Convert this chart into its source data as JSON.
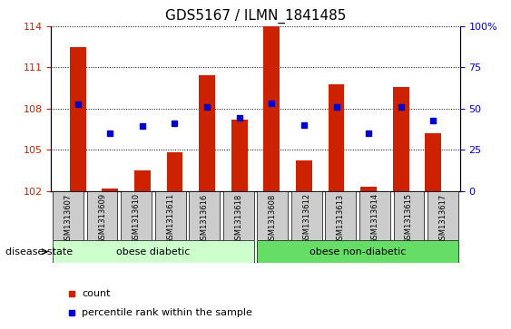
{
  "title": "GDS5167 / ILMN_1841485",
  "samples": [
    "GSM1313607",
    "GSM1313609",
    "GSM1313610",
    "GSM1313611",
    "GSM1313616",
    "GSM1313618",
    "GSM1313608",
    "GSM1313612",
    "GSM1313613",
    "GSM1313614",
    "GSM1313615",
    "GSM1313617"
  ],
  "bar_values": [
    112.5,
    102.2,
    103.5,
    104.8,
    110.4,
    107.2,
    114.0,
    104.2,
    109.8,
    102.3,
    109.6,
    106.2
  ],
  "dot_values": [
    108.3,
    106.2,
    106.7,
    106.9,
    108.1,
    107.3,
    108.4,
    106.8,
    108.1,
    106.2,
    108.1,
    107.1
  ],
  "bar_color": "#cc2200",
  "dot_color": "#0000cc",
  "ylim_left": [
    102,
    114
  ],
  "yticks_left": [
    102,
    105,
    108,
    111,
    114
  ],
  "ylim_right": [
    0,
    100
  ],
  "yticks_right": [
    0,
    25,
    50,
    75,
    100
  ],
  "group1_label": "obese diabetic",
  "group2_label": "obese non-diabetic",
  "group1_indices": [
    0,
    1,
    2,
    3,
    4,
    5
  ],
  "group2_indices": [
    6,
    7,
    8,
    9,
    10,
    11
  ],
  "group1_color": "#ccffcc",
  "group2_color": "#66dd66",
  "disease_state_label": "disease state",
  "legend_count_label": "count",
  "legend_percentile_label": "percentile rank within the sample",
  "bg_color": "#ffffff",
  "tick_bg_color": "#cccccc",
  "title_fontsize": 11,
  "bar_width": 0.5
}
